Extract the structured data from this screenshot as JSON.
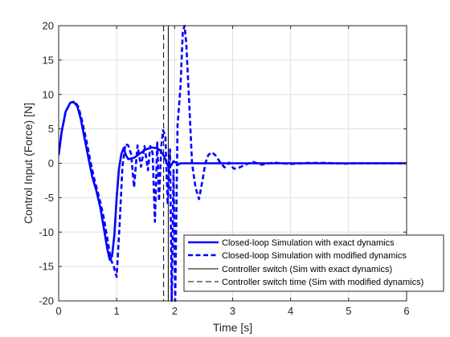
{
  "chart_data": {
    "type": "line",
    "xlabel": "Time [s]",
    "ylabel": "Control Input (Force) [N]",
    "xlim": [
      0,
      6
    ],
    "ylim": [
      -20,
      20
    ],
    "xticks": [
      0,
      1,
      2,
      3,
      4,
      5,
      6
    ],
    "yticks": [
      -20,
      -15,
      -10,
      -5,
      0,
      5,
      10,
      15,
      20
    ],
    "grid": true,
    "legend_position": "bottom-right",
    "series": [
      {
        "name": "Closed-loop Simulation with exact dynamics",
        "style": "solid",
        "color": "#0000ff",
        "x": [
          0,
          0.05,
          0.12,
          0.2,
          0.26,
          0.32,
          0.38,
          0.45,
          0.52,
          0.58,
          0.65,
          0.72,
          0.78,
          0.84,
          0.88,
          0.92,
          0.96,
          1.0,
          1.04,
          1.08,
          1.12,
          1.16,
          1.2,
          1.3,
          1.4,
          1.5,
          1.6,
          1.7,
          1.76,
          1.82,
          1.86,
          1.9,
          1.94,
          1.98,
          2.02,
          2.06,
          2.1,
          2.2,
          2.4,
          2.6,
          3.0,
          4.0,
          5.0,
          6.0
        ],
        "y": [
          1.2,
          4.5,
          7.5,
          8.8,
          8.9,
          8.3,
          6.5,
          3.5,
          0.5,
          -2,
          -4,
          -6.5,
          -9.5,
          -12.5,
          -14,
          -13.5,
          -10.5,
          -5,
          -0.8,
          1.3,
          2.2,
          1.2,
          0.6,
          0.8,
          1.4,
          2.0,
          2.3,
          2.2,
          1.8,
          1.0,
          0.1,
          -0.6,
          -0.3,
          0.3,
          0.1,
          -0.2,
          0.0,
          0,
          0,
          0,
          0,
          0,
          0,
          0
        ]
      },
      {
        "name": "Closed-loop Simulation with modified dynamics",
        "style": "dashed",
        "color": "#0000ff",
        "x": [
          0,
          0.05,
          0.12,
          0.2,
          0.28,
          0.34,
          0.4,
          0.48,
          0.55,
          0.62,
          0.7,
          0.78,
          0.84,
          0.9,
          0.95,
          1.0,
          1.05,
          1.1,
          1.15,
          1.2,
          1.25,
          1.3,
          1.36,
          1.42,
          1.48,
          1.54,
          1.58,
          1.62,
          1.66,
          1.7,
          1.73,
          1.77,
          1.8,
          1.84,
          1.88,
          1.92,
          1.95,
          1.98,
          2.01,
          2.05,
          2.1,
          2.14,
          2.17,
          2.2,
          2.25,
          2.3,
          2.36,
          2.42,
          2.48,
          2.53,
          2.58,
          2.64,
          2.7,
          2.78,
          2.86,
          2.94,
          3.02,
          3.12,
          3.22,
          3.35,
          3.5,
          3.7,
          4.0,
          4.3,
          4.6,
          4.9,
          5.2,
          6.0
        ],
        "y": [
          1.2,
          4.5,
          7.5,
          8.8,
          9.0,
          8.2,
          6.3,
          3.2,
          0.2,
          -2.5,
          -5,
          -8,
          -11,
          -14,
          -15,
          -16.5,
          -9,
          -0.5,
          2.8,
          2.6,
          1.3,
          -3.5,
          2.6,
          -0.5,
          2.5,
          -1.0,
          2.5,
          1.5,
          -8.5,
          3.2,
          -5.5,
          2.5,
          4.8,
          4.0,
          -6,
          2.0,
          -20,
          -1.0,
          -20,
          5.5,
          11,
          19,
          20,
          17.5,
          9,
          0,
          -3.5,
          -5.2,
          -2.5,
          0.0,
          1.2,
          1.6,
          1.2,
          0.2,
          -0.6,
          0.1,
          -0.8,
          -0.6,
          -0.2,
          0.2,
          -0.2,
          0.1,
          -0.1,
          0.05,
          0.05,
          -0.05,
          0,
          0
        ]
      }
    ],
    "vertical_lines": [
      {
        "name": "Controller switch (Sim with exact dynamics)",
        "style": "solid",
        "color": "#000000",
        "x": 1.89
      },
      {
        "name": "Controller switch time (Sim with modified dynamics)",
        "style": "dashed",
        "color": "#000000",
        "x": 1.81
      }
    ]
  }
}
